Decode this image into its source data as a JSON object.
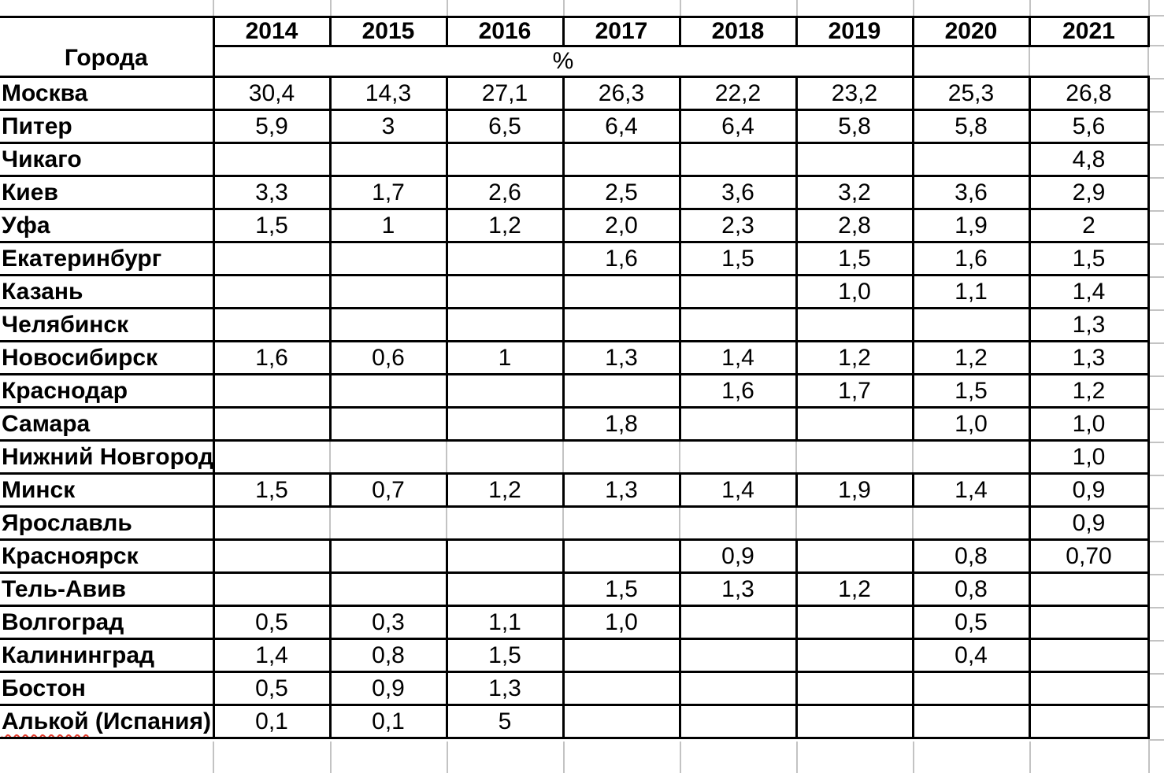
{
  "table": {
    "corner_label": "Города",
    "unit_label": "%",
    "years": [
      "2014",
      "2015",
      "2016",
      "2017",
      "2018",
      "2019",
      "2020",
      "2021"
    ],
    "rows": [
      {
        "city": "Москва",
        "values": [
          "30,4",
          "14,3",
          "27,1",
          "26,3",
          "22,2",
          "23,2",
          "25,3",
          "26,8"
        ]
      },
      {
        "city": "Питер",
        "values": [
          "5,9",
          "3",
          "6,5",
          "6,4",
          "6,4",
          "5,8",
          "5,8",
          "5,6"
        ]
      },
      {
        "city": "Чикаго",
        "values": [
          "",
          "",
          "",
          "",
          "",
          "",
          "",
          "4,8"
        ]
      },
      {
        "city": "Киев",
        "values": [
          "3,3",
          "1,7",
          "2,6",
          "2,5",
          "3,6",
          "3,2",
          "3,6",
          "2,9"
        ]
      },
      {
        "city": "Уфа",
        "values": [
          "1,5",
          "1",
          "1,2",
          "2,0",
          "2,3",
          "2,8",
          "1,9",
          "2"
        ]
      },
      {
        "city": "Екатеринбург",
        "values": [
          "",
          "",
          "",
          "1,6",
          "1,5",
          "1,5",
          "1,6",
          "1,5"
        ]
      },
      {
        "city": "Казань",
        "values": [
          "",
          "",
          "",
          "",
          "",
          "1,0",
          "1,1",
          "1,4"
        ]
      },
      {
        "city": "Челябинск",
        "values": [
          "",
          "",
          "",
          "",
          "",
          "",
          "",
          "1,3"
        ]
      },
      {
        "city": "Новосибирск",
        "values": [
          "1,6",
          "0,6",
          "1",
          "1,3",
          "1,4",
          "1,2",
          "1,2",
          "1,3"
        ]
      },
      {
        "city": "Краснодар",
        "values": [
          "",
          "",
          "",
          "",
          "1,6",
          "1,7",
          "1,5",
          "1,2"
        ]
      },
      {
        "city": "Самара",
        "values": [
          "",
          "",
          "",
          "1,8",
          "",
          "",
          "1,0",
          "1,0"
        ]
      },
      {
        "city": "Нижний Новгород",
        "values": [
          "",
          "",
          "",
          "",
          "",
          "",
          "",
          "1,0"
        ],
        "light_grid": true
      },
      {
        "city": "Минск",
        "values": [
          "1,5",
          "0,7",
          "1,2",
          "1,3",
          "1,4",
          "1,9",
          "1,4",
          "0,9"
        ]
      },
      {
        "city": "Ярославль",
        "values": [
          "",
          "",
          "",
          "",
          "",
          "",
          "",
          "0,9"
        ],
        "light_grid": true
      },
      {
        "city": "Красноярск",
        "values": [
          "",
          "",
          "",
          "",
          "0,9",
          "",
          "0,8",
          "0,70"
        ]
      },
      {
        "city": "Тель-Авив",
        "values": [
          "",
          "",
          "",
          "1,5",
          "1,3",
          "1,2",
          "0,8",
          ""
        ]
      },
      {
        "city": "Волгоград",
        "values": [
          "0,5",
          "0,3",
          "1,1",
          "1,0",
          "",
          "",
          "0,5",
          ""
        ]
      },
      {
        "city": "Калининград",
        "values": [
          "1,4",
          "0,8",
          "1,5",
          "",
          "",
          "",
          "0,4",
          ""
        ]
      },
      {
        "city": "Бостон",
        "values": [
          "0,5",
          "0,9",
          "1,3",
          "",
          "",
          "",
          "",
          ""
        ]
      },
      {
        "city": "Алькой (Испания)",
        "values": [
          "0,1",
          "0,1",
          "5",
          "",
          "",
          "",
          "",
          ""
        ],
        "spellcheck_word": "Алькой"
      }
    ],
    "colors": {
      "table_border": "#000000",
      "sheet_gridline": "#c3c3c3",
      "spellcheck_underline": "#e53b2c"
    }
  }
}
